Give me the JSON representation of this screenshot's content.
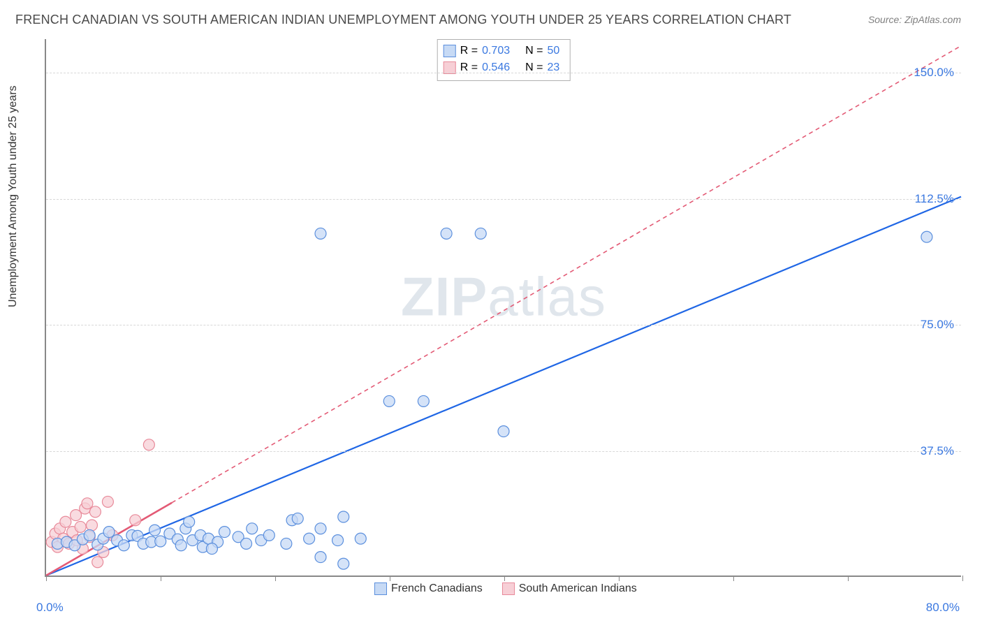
{
  "title": "FRENCH CANADIAN VS SOUTH AMERICAN INDIAN UNEMPLOYMENT AMONG YOUTH UNDER 25 YEARS CORRELATION CHART",
  "source_label": "Source: ZipAtlas.com",
  "watermark_bold": "ZIP",
  "watermark_rest": "atlas",
  "yaxis_title": "Unemployment Among Youth under 25 years",
  "chart": {
    "type": "scatter-correlation",
    "background_color": "#ffffff",
    "grid_color": "#d8d8d8",
    "axis_color": "#888888",
    "tick_label_color": "#3a78e0",
    "xlim": [
      0,
      80
    ],
    "ylim": [
      0,
      160
    ],
    "xticks": [
      0,
      10,
      20,
      30,
      40,
      50,
      60,
      70,
      80
    ],
    "yticks": [
      37.5,
      75.0,
      112.5,
      150.0
    ],
    "xlabel_min": "0.0%",
    "xlabel_max": "80.0%",
    "ytick_labels": [
      "37.5%",
      "75.0%",
      "112.5%",
      "150.0%"
    ],
    "point_radius": 8,
    "point_stroke_width": 1.2,
    "series": [
      {
        "key": "french_canadians",
        "label": "French Canadians",
        "fill": "#c7daf5",
        "stroke": "#5b8fdd",
        "line_color": "#1f66e5",
        "line_dash": "none",
        "line_width": 2.2,
        "R_label": "R =",
        "R_value": "0.703",
        "N_label": "N =",
        "N_value": "50",
        "trend": {
          "x1": 0,
          "y1": 0,
          "x2": 80,
          "y2": 113
        },
        "points": [
          [
            1.0,
            9.5
          ],
          [
            1.8,
            10.0
          ],
          [
            2.5,
            9.0
          ],
          [
            3.2,
            10.8
          ],
          [
            3.8,
            12.0
          ],
          [
            4.5,
            9.2
          ],
          [
            5.0,
            11.0
          ],
          [
            5.5,
            13.0
          ],
          [
            6.2,
            10.5
          ],
          [
            6.8,
            9.0
          ],
          [
            7.5,
            12.0
          ],
          [
            8.0,
            11.8
          ],
          [
            8.5,
            9.5
          ],
          [
            9.2,
            10.0
          ],
          [
            9.5,
            13.5
          ],
          [
            10.0,
            10.2
          ],
          [
            10.8,
            12.5
          ],
          [
            11.5,
            10.8
          ],
          [
            11.8,
            9.0
          ],
          [
            12.2,
            14.0
          ],
          [
            12.8,
            10.5
          ],
          [
            13.5,
            12.0
          ],
          [
            13.7,
            8.5
          ],
          [
            14.2,
            11.0
          ],
          [
            15.0,
            10.0
          ],
          [
            15.6,
            13.0
          ],
          [
            12.5,
            16.0
          ],
          [
            16.8,
            11.5
          ],
          [
            17.5,
            9.5
          ],
          [
            18.0,
            14.0
          ],
          [
            18.8,
            10.5
          ],
          [
            19.5,
            12.0
          ],
          [
            21.0,
            9.5
          ],
          [
            21.5,
            16.5
          ],
          [
            23.0,
            11.0
          ],
          [
            22.0,
            17.0
          ],
          [
            24.0,
            5.5
          ],
          [
            25.5,
            10.5
          ],
          [
            26.0,
            17.5
          ],
          [
            24.0,
            102.0
          ],
          [
            27.5,
            11.0
          ],
          [
            26.0,
            3.5
          ],
          [
            30.0,
            52.0
          ],
          [
            33.0,
            52.0
          ],
          [
            35.0,
            102.0
          ],
          [
            38.0,
            102.0
          ],
          [
            40.0,
            43.0
          ],
          [
            24.0,
            14.0
          ],
          [
            14.5,
            8.0
          ],
          [
            77.0,
            101.0
          ]
        ]
      },
      {
        "key": "south_american_indians",
        "label": "South American Indians",
        "fill": "#f7cfd6",
        "stroke": "#e88a9a",
        "line_color": "#e35a75",
        "line_dash": "6 5",
        "line_width": 1.6,
        "R_label": "R =",
        "R_value": "0.546",
        "N_label": "N =",
        "N_value": "23",
        "trend": {
          "x1": 0,
          "y1": 0,
          "x2": 80,
          "y2": 158
        },
        "trend_solid_until_x": 11,
        "points": [
          [
            0.5,
            10.0
          ],
          [
            0.8,
            12.5
          ],
          [
            1.0,
            8.5
          ],
          [
            1.2,
            14.0
          ],
          [
            1.5,
            11.0
          ],
          [
            1.7,
            16.0
          ],
          [
            2.0,
            9.5
          ],
          [
            2.3,
            13.0
          ],
          [
            2.6,
            18.0
          ],
          [
            2.7,
            10.5
          ],
          [
            3.0,
            14.5
          ],
          [
            3.2,
            8.0
          ],
          [
            3.4,
            20.0
          ],
          [
            3.6,
            21.5
          ],
          [
            3.8,
            11.5
          ],
          [
            4.0,
            15.0
          ],
          [
            4.3,
            19.0
          ],
          [
            5.0,
            7.0
          ],
          [
            5.4,
            22.0
          ],
          [
            5.8,
            12.0
          ],
          [
            4.5,
            4.0
          ],
          [
            7.8,
            16.5
          ],
          [
            9.0,
            39.0
          ]
        ]
      }
    ]
  }
}
